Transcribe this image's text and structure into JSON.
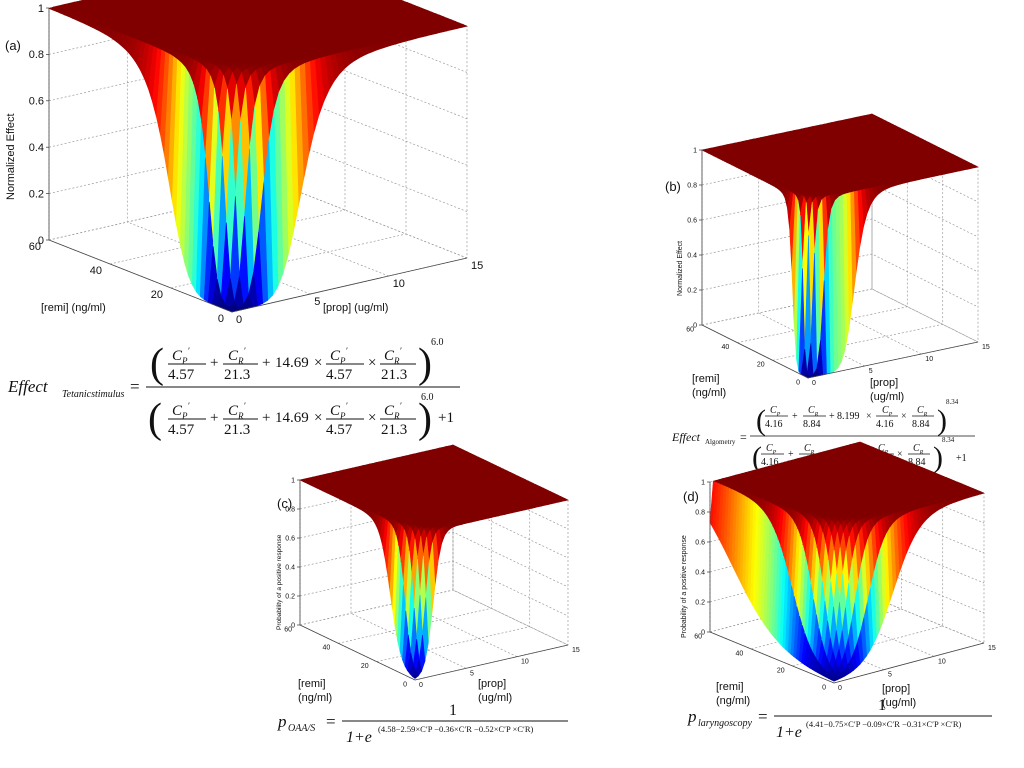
{
  "chart_data": [
    {
      "type": "surface",
      "panel_label": "(a)",
      "xlabel": "[prop]  (ug/ml)",
      "ylabel": "[remi]  (ng/ml)",
      "zlabel": "Normalized Effect",
      "x_ticks": [
        "0",
        "5",
        "10",
        "15"
      ],
      "y_ticks": [
        "0",
        "20",
        "40",
        "60"
      ],
      "z_ticks": [
        "0",
        "0.2",
        "0.4",
        "0.6",
        "0.8",
        "1"
      ],
      "xlim": [
        0,
        15
      ],
      "ylim": [
        0,
        60
      ],
      "zlim": [
        0,
        1
      ],
      "model": {
        "kind": "hill",
        "c50_prop": 4.57,
        "c50_remi": 21.3,
        "interaction": 14.69,
        "gamma": 6.0
      },
      "equation": {
        "lhs": "Effect",
        "lhs_sub": "Tetanicstimulus",
        "num1": "4.57",
        "num2": "21.3",
        "coef": "14.69",
        "num3": "4.57",
        "num4": "21.3",
        "exponent": "6.0",
        "plus_one": "+1"
      }
    },
    {
      "type": "surface",
      "panel_label": "(b)",
      "xlabel": "[prop]\n(ug/ml)",
      "ylabel": "[remi]\n(ng/ml)",
      "zlabel": "Normalized Effect",
      "x_ticks": [
        "0",
        "5",
        "10",
        "15"
      ],
      "y_ticks": [
        "0",
        "20",
        "40",
        "60"
      ],
      "z_ticks": [
        "0",
        "0.2",
        "0.4",
        "0.6",
        "0.8",
        "1"
      ],
      "xlim": [
        0,
        15
      ],
      "ylim": [
        0,
        60
      ],
      "zlim": [
        0,
        1
      ],
      "model": {
        "kind": "hill",
        "c50_prop": 4.16,
        "c50_remi": 8.84,
        "interaction": 8.199,
        "gamma": 8.34
      },
      "equation": {
        "lhs": "Effect",
        "lhs_sub": "Algometry",
        "num1": "4.16",
        "num2": "8.84",
        "coef": "8.199",
        "num3": "4.16",
        "num4": "8.84",
        "exponent": "8.34",
        "plus_one": "+1"
      }
    },
    {
      "type": "surface",
      "panel_label": "(c)",
      "xlabel": "[prop]\n(ug/ml)",
      "ylabel": "[remi]\n(ng/ml)",
      "zlabel": "Probability of a positive response",
      "x_ticks": [
        "0",
        "5",
        "10",
        "15"
      ],
      "y_ticks": [
        "0",
        "20",
        "40",
        "60"
      ],
      "z_ticks": [
        "0",
        "0.2",
        "0.4",
        "0.6",
        "0.8",
        "1"
      ],
      "xlim": [
        0,
        15
      ],
      "ylim": [
        0,
        60
      ],
      "zlim": [
        0,
        1
      ],
      "model": {
        "kind": "logistic",
        "b0": 4.58,
        "bP": 2.59,
        "bR": 0.36,
        "bPR": 0.52
      },
      "equation": {
        "lhs": "p",
        "lhs_sub": "OAA/S",
        "numerator": "1",
        "denom_base": "1+e",
        "exponent": "(4.58−2.59×C′P −0.36×C′R −0.52×C′P ×C′R)"
      }
    },
    {
      "type": "surface",
      "panel_label": "(d)",
      "xlabel": "[prop]\n(ug/ml)",
      "ylabel": "[remi]\n(ng/ml)",
      "zlabel": "Probability of a positive response",
      "x_ticks": [
        "0",
        "5",
        "10",
        "15"
      ],
      "y_ticks": [
        "0",
        "20",
        "40",
        "60"
      ],
      "z_ticks": [
        "0",
        "0.2",
        "0.4",
        "0.6",
        "0.8",
        "1"
      ],
      "xlim": [
        0,
        15
      ],
      "ylim": [
        0,
        60
      ],
      "zlim": [
        0,
        1
      ],
      "model": {
        "kind": "logistic",
        "b0": 4.41,
        "bP": 0.75,
        "bR": 0.09,
        "bPR": 0.31
      },
      "equation": {
        "lhs": "p",
        "lhs_sub": "laryngoscopy",
        "numerator": "1",
        "denom_base": "1+e",
        "exponent": "(4.41−0.75×C′P −0.09×C′R −0.31×C′P ×C′R)"
      }
    }
  ]
}
